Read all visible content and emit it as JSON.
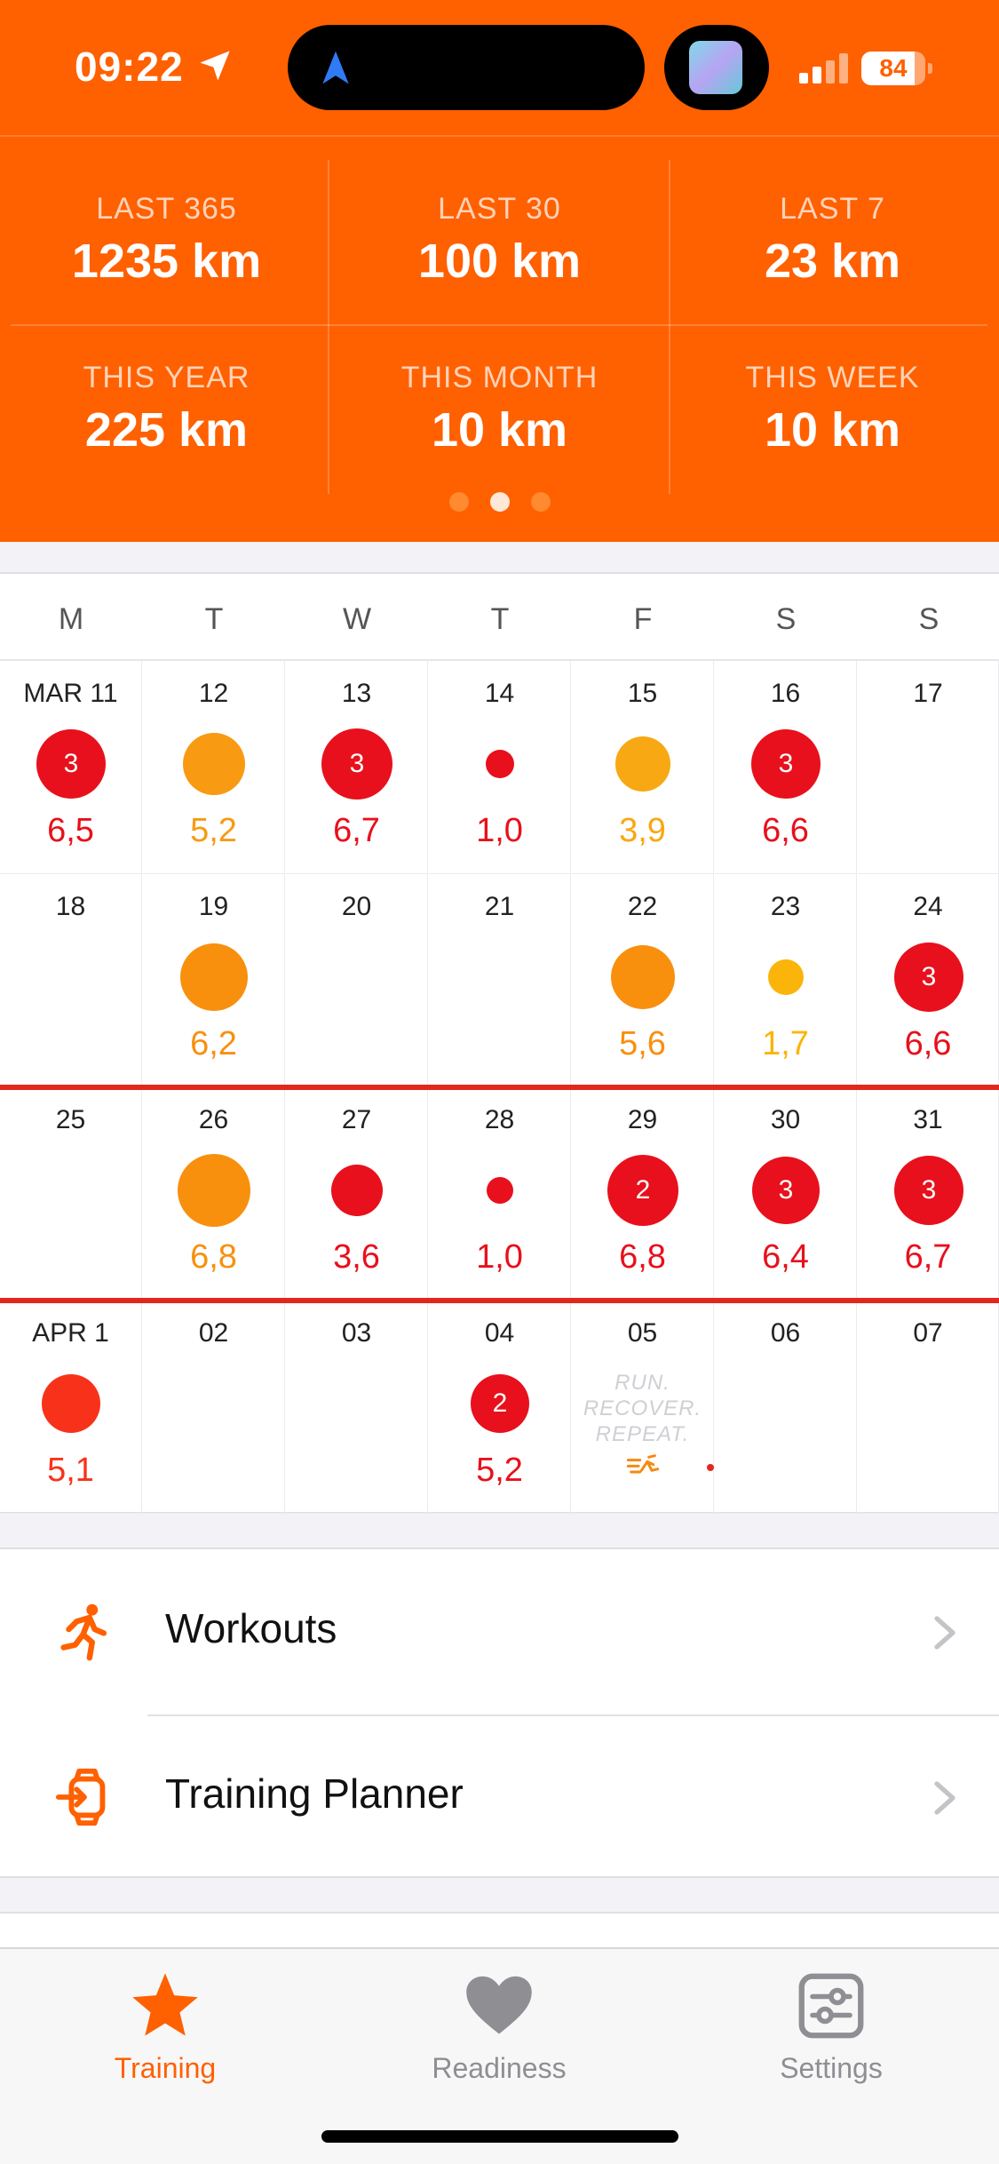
{
  "status_bar": {
    "time": "09:22",
    "battery": "84",
    "battery_level": 0.84
  },
  "stats": [
    {
      "label": "LAST 365",
      "value": "1235 km"
    },
    {
      "label": "LAST 30",
      "value": "100 km"
    },
    {
      "label": "LAST 7",
      "value": "23 km"
    },
    {
      "label": "THIS YEAR",
      "value": "225 km"
    },
    {
      "label": "THIS MONTH",
      "value": "10 km"
    },
    {
      "label": "THIS WEEK",
      "value": "10 km"
    }
  ],
  "page_dots": {
    "count": 3,
    "active": 1
  },
  "calendar": {
    "weekdays": [
      "M",
      "T",
      "W",
      "T",
      "F",
      "S",
      "S"
    ],
    "weeks": [
      [
        {
          "date": "MAR 11",
          "km": "6,5",
          "badge": "3",
          "color": "#e8101c",
          "size": 78
        },
        {
          "date": "12",
          "km": "5,2",
          "badge": "",
          "color": "#f89a12",
          "size": 70
        },
        {
          "date": "13",
          "km": "6,7",
          "badge": "3",
          "color": "#e8101c",
          "size": 80
        },
        {
          "date": "14",
          "km": "1,0",
          "badge": "",
          "color": "#e8101c",
          "size": 32
        },
        {
          "date": "15",
          "km": "3,9",
          "badge": "",
          "color": "#f8a812",
          "size": 62
        },
        {
          "date": "16",
          "km": "6,6",
          "badge": "3",
          "color": "#e8101c",
          "size": 78
        },
        {
          "date": "17",
          "km": "",
          "badge": "",
          "color": "",
          "size": 0
        }
      ],
      [
        {
          "date": "18",
          "km": "",
          "badge": "",
          "color": "",
          "size": 0
        },
        {
          "date": "19",
          "km": "6,2",
          "badge": "",
          "color": "#f8900e",
          "size": 76
        },
        {
          "date": "20",
          "km": "",
          "badge": "",
          "color": "",
          "size": 0
        },
        {
          "date": "21",
          "km": "",
          "badge": "",
          "color": "",
          "size": 0
        },
        {
          "date": "22",
          "km": "5,6",
          "badge": "",
          "color": "#f8900e",
          "size": 72
        },
        {
          "date": "23",
          "km": "1,7",
          "badge": "",
          "color": "#fbb40a",
          "size": 40
        },
        {
          "date": "24",
          "km": "6,6",
          "badge": "3",
          "color": "#e8101c",
          "size": 78
        }
      ],
      [
        {
          "date": "25",
          "km": "",
          "badge": "",
          "color": "",
          "size": 0
        },
        {
          "date": "26",
          "km": "6,8",
          "badge": "",
          "color": "#f8900e",
          "size": 82
        },
        {
          "date": "27",
          "km": "3,6",
          "badge": "",
          "color": "#e8101c",
          "size": 58
        },
        {
          "date": "28",
          "km": "1,0",
          "badge": "",
          "color": "#e8101c",
          "size": 30
        },
        {
          "date": "29",
          "km": "6,8",
          "badge": "2",
          "color": "#e8101c",
          "size": 80
        },
        {
          "date": "30",
          "km": "6,4",
          "badge": "3",
          "color": "#e8101c",
          "size": 76
        },
        {
          "date": "31",
          "km": "6,7",
          "badge": "3",
          "color": "#e8101c",
          "size": 78
        }
      ],
      [
        {
          "date": "APR 1",
          "km": "5,1",
          "badge": "",
          "color": "#f8321a",
          "size": 66
        },
        {
          "date": "02",
          "km": "",
          "badge": "",
          "color": "",
          "size": 0
        },
        {
          "date": "03",
          "km": "",
          "badge": "",
          "color": "",
          "size": 0
        },
        {
          "date": "04",
          "km": "5,2",
          "badge": "2",
          "color": "#e8101c",
          "size": 66
        },
        {
          "date": "05",
          "km": "",
          "badge": "",
          "color": "",
          "size": 0,
          "rest": "RUN.\nRECOVER.\nREPEAT."
        },
        {
          "date": "06",
          "km": "",
          "badge": "",
          "color": "",
          "size": 0
        },
        {
          "date": "07",
          "km": "",
          "badge": "",
          "color": "",
          "size": 0
        }
      ]
    ]
  },
  "menu": {
    "workouts_label": "Workouts",
    "planner_label": "Training Planner"
  },
  "tabs": {
    "training": "Training",
    "readiness": "Readiness",
    "settings": "Settings"
  },
  "colors": {
    "accent": "#ff6000",
    "high_load": "#e8101c",
    "moderate_load": "#f8900e"
  }
}
